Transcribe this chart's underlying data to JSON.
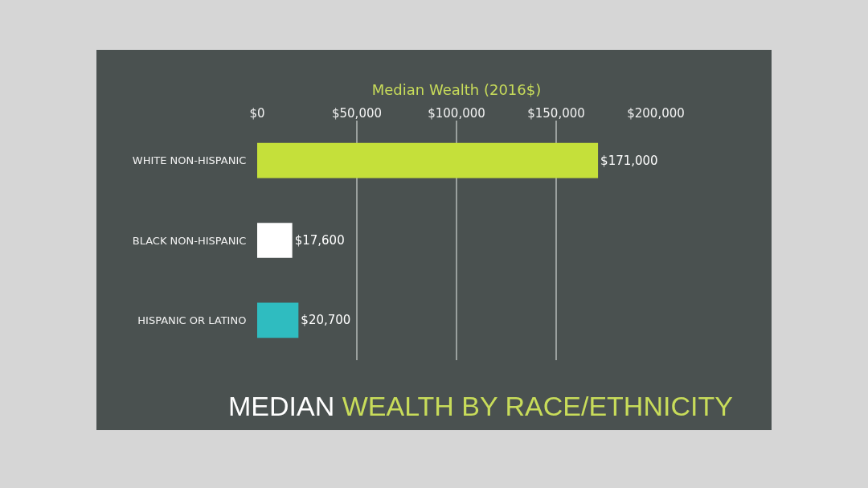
{
  "chart_data": {
    "type": "bar",
    "orientation": "horizontal",
    "title": "MEDIAN WEALTH BY RACE/ETHNICITY",
    "xlabel": "Median Wealth (2016$)",
    "categories": [
      "WHITE NON-HISPANIC",
      "BLACK NON-HISPANIC",
      "HISPANIC OR LATINO"
    ],
    "values": [
      171000,
      17600,
      20700
    ],
    "colors": [
      "#c5e03a",
      "#ffffff",
      "#2fbcc0"
    ],
    "value_labels": [
      "$171,000",
      "$17,600",
      "$20,700"
    ],
    "xlim": [
      0,
      200000
    ],
    "xticks": [
      {
        "value": 0,
        "label": "$0"
      },
      {
        "value": 50000,
        "label": "$50,000"
      },
      {
        "value": 100000,
        "label": "$100,000"
      },
      {
        "value": 150000,
        "label": "$150,000"
      },
      {
        "value": 200000,
        "label": "$200,000"
      }
    ],
    "grid": "x"
  }
}
